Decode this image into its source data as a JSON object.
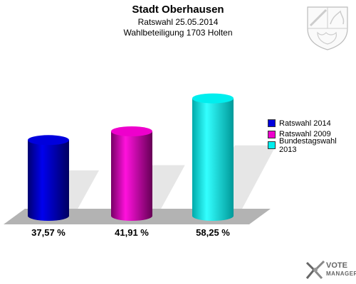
{
  "header": {
    "title": "Stadt Oberhausen",
    "subtitle1": "Ratswahl 25.05.2014",
    "subtitle2": "Wahlbeteiligung 1703 Holten"
  },
  "chart_data": {
    "type": "bar",
    "title": "Stadt Oberhausen",
    "subtitle": [
      "Ratswahl 25.05.2014",
      "Wahlbeteiligung 1703 Holten"
    ],
    "categories": [
      "Ratswahl 2014",
      "Ratswahl 2009",
      "Bundestagswahl 2013"
    ],
    "values": [
      37.57,
      41.91,
      58.25
    ],
    "value_labels": [
      "37,57 %",
      "41,91 %",
      "58,25 %"
    ],
    "colors": [
      "#0000dd",
      "#ee00cc",
      "#00eeee"
    ],
    "ylim": [
      0,
      100
    ],
    "grid": false,
    "legend_position": "right"
  },
  "legend": {
    "items": [
      {
        "label": "Ratswahl 2014",
        "color": "#0000dd"
      },
      {
        "label": "Ratswahl 2009",
        "color": "#ee00cc"
      },
      {
        "label": "Bundestagswahl 2013",
        "color": "#00eeee"
      }
    ]
  },
  "branding": {
    "line1": "VOTE",
    "line2": "MANAGER",
    "crest_icon": "nrw-coat-of-arms-icon",
    "logo_icon": "vote-manager-logo-icon"
  }
}
